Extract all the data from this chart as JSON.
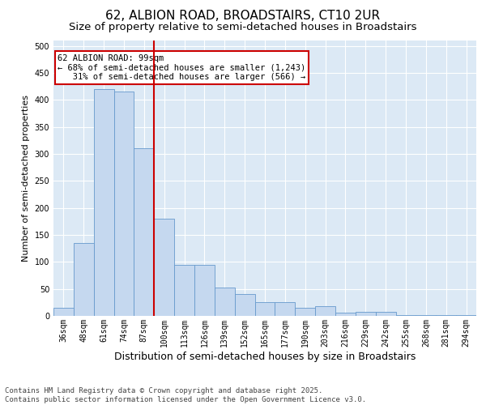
{
  "title1": "62, ALBION ROAD, BROADSTAIRS, CT10 2UR",
  "title2": "Size of property relative to semi-detached houses in Broadstairs",
  "xlabel": "Distribution of semi-detached houses by size in Broadstairs",
  "ylabel": "Number of semi-detached properties",
  "categories": [
    "36sqm",
    "48sqm",
    "61sqm",
    "74sqm",
    "87sqm",
    "100sqm",
    "113sqm",
    "126sqm",
    "139sqm",
    "152sqm",
    "165sqm",
    "177sqm",
    "190sqm",
    "203sqm",
    "216sqm",
    "229sqm",
    "242sqm",
    "255sqm",
    "268sqm",
    "281sqm",
    "294sqm"
  ],
  "values": [
    15,
    135,
    420,
    415,
    310,
    180,
    95,
    95,
    52,
    40,
    25,
    25,
    15,
    18,
    6,
    7,
    7,
    1,
    1,
    1,
    2
  ],
  "bar_color": "#c5d8ef",
  "bar_edge_color": "#6699cc",
  "vline_color": "#cc0000",
  "vline_x_idx": 5,
  "annotation_text": "62 ALBION ROAD: 99sqm\n← 68% of semi-detached houses are smaller (1,243)\n   31% of semi-detached houses are larger (566) →",
  "annotation_box_facecolor": "#ffffff",
  "annotation_box_edgecolor": "#cc0000",
  "ylim": [
    0,
    510
  ],
  "yticks": [
    0,
    50,
    100,
    150,
    200,
    250,
    300,
    350,
    400,
    450,
    500
  ],
  "footer": "Contains HM Land Registry data © Crown copyright and database right 2025.\nContains public sector information licensed under the Open Government Licence v3.0.",
  "outer_bg": "#ffffff",
  "plot_bg": "#dce9f5",
  "grid_color": "#ffffff",
  "title1_fontsize": 11,
  "title2_fontsize": 9.5,
  "xlabel_fontsize": 9,
  "ylabel_fontsize": 8,
  "tick_fontsize": 7,
  "annot_fontsize": 7.5,
  "footer_fontsize": 6.5
}
